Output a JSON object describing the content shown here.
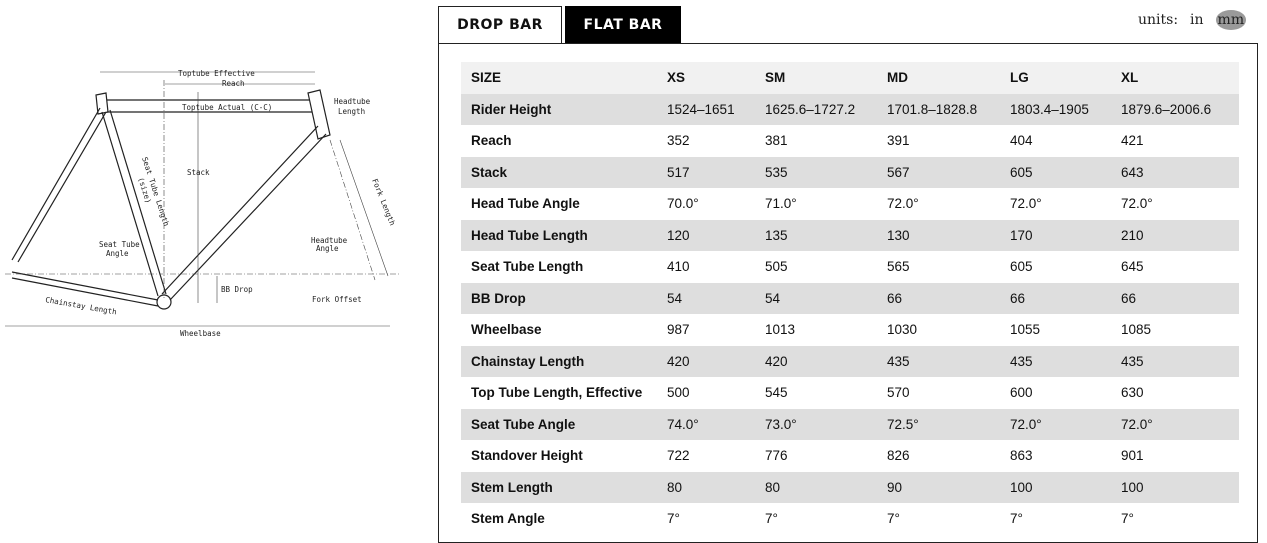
{
  "tabs": [
    {
      "label": "DROP BAR",
      "active": false
    },
    {
      "label": "FLAT BAR",
      "active": true
    }
  ],
  "units": {
    "label": "units:",
    "options": [
      "in",
      "mm"
    ],
    "selected": "mm"
  },
  "diagram": {
    "labels": {
      "toptube_effective": "Toptube Effective",
      "reach": "Reach",
      "toptube_actual": "Toptube Actual (C-C)",
      "headtube_length_1": "Headtube",
      "headtube_length_2": "Length",
      "stack": "Stack",
      "seat_tube_length_1": "Seat Tube Length",
      "seat_tube_length_2": "(size)",
      "fork_length": "Fork Length",
      "seat_tube_angle_1": "Seat Tube",
      "seat_tube_angle_2": "Angle",
      "headtube_angle_1": "Headtube",
      "headtube_angle_2": "Angle",
      "bb_drop": "BB Drop",
      "fork_offset": "Fork Offset",
      "chainstay_length": "Chainstay Length",
      "wheelbase": "Wheelbase"
    }
  },
  "table": {
    "header": [
      "SIZE",
      "XS",
      "SM",
      "MD",
      "LG",
      "XL"
    ],
    "rows": [
      [
        "Rider Height",
        "1524–1651",
        "1625.6–1727.2",
        "1701.8–1828.8",
        "1803.4–1905",
        "1879.6–2006.6"
      ],
      [
        "Reach",
        "352",
        "381",
        "391",
        "404",
        "421"
      ],
      [
        "Stack",
        "517",
        "535",
        "567",
        "605",
        "643"
      ],
      [
        "Head Tube Angle",
        "70.0°",
        "71.0°",
        "72.0°",
        "72.0°",
        "72.0°"
      ],
      [
        "Head Tube Length",
        "120",
        "135",
        "130",
        "170",
        "210"
      ],
      [
        "Seat Tube Length",
        "410",
        "505",
        "565",
        "605",
        "645"
      ],
      [
        "BB Drop",
        "54",
        "54",
        "66",
        "66",
        "66"
      ],
      [
        "Wheelbase",
        "987",
        "1013",
        "1030",
        "1055",
        "1085"
      ],
      [
        "Chainstay Length",
        "420",
        "420",
        "435",
        "435",
        "435"
      ],
      [
        "Top Tube Length, Effective",
        "500",
        "545",
        "570",
        "600",
        "630"
      ],
      [
        "Seat Tube Angle",
        "74.0°",
        "73.0°",
        "72.5°",
        "72.0°",
        "72.0°"
      ],
      [
        "Standover Height",
        "722",
        "776",
        "826",
        "863",
        "901"
      ],
      [
        "Stem Length",
        "80",
        "80",
        "90",
        "100",
        "100"
      ],
      [
        "Stem Angle",
        "7°",
        "7°",
        "7°",
        "7°",
        "7°"
      ]
    ]
  }
}
